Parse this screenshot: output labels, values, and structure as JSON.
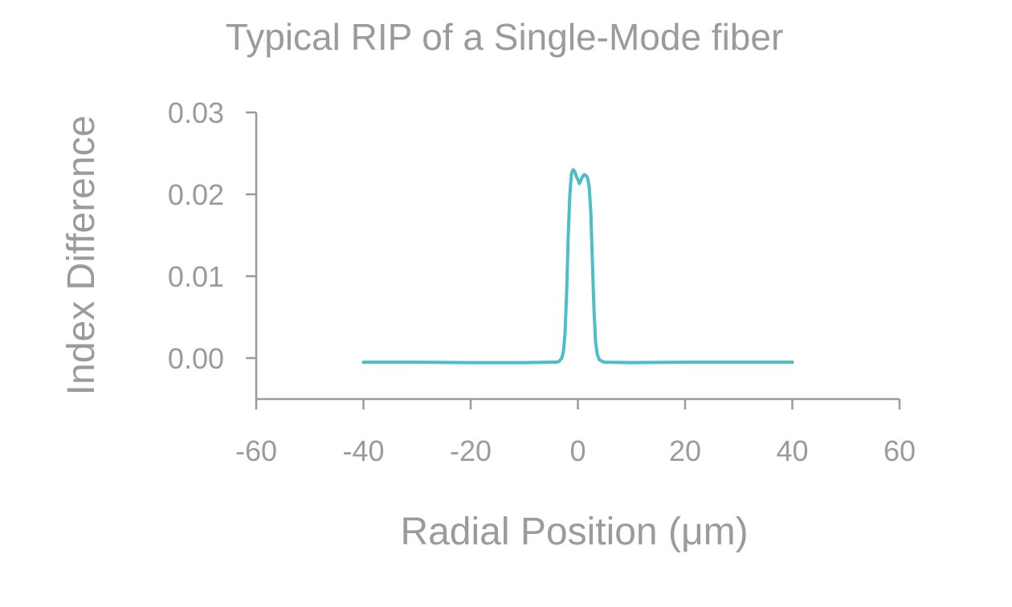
{
  "chart_data": {
    "type": "line",
    "title": "Typical RIP of a Single-Mode fiber",
    "xlabel": "Radial Position (μm)",
    "ylabel": "Index Difference",
    "xlim": [
      -60,
      60
    ],
    "ylim": [
      -0.005,
      0.03
    ],
    "x_ticks": [
      -60,
      -40,
      -20,
      0,
      20,
      40,
      60
    ],
    "x_tick_labels": [
      "-60",
      "-40",
      "-20",
      "0",
      "20",
      "40",
      "60"
    ],
    "y_ticks": [
      0.0,
      0.01,
      0.02,
      0.03
    ],
    "y_tick_labels": [
      "0.00",
      "0.01",
      "0.02",
      "0.03"
    ],
    "grid": false,
    "legend": "none",
    "series_color": "#4dbdc6",
    "axis_color": "#9b9b9b",
    "series": [
      {
        "x": [
          -40,
          -30,
          -20,
          -10,
          -5,
          -4,
          -3.5,
          -3,
          -2.7,
          -2.4,
          -2.1,
          -1.8,
          -1.5,
          -1.2,
          -0.9,
          -0.6,
          -0.3,
          0,
          0.3,
          0.6,
          0.9,
          1.2,
          1.5,
          1.8,
          2.1,
          2.4,
          2.7,
          3.0,
          3.3,
          3.6,
          4.0,
          4.5,
          5,
          10,
          20,
          30,
          40
        ],
        "y": [
          -0.0005,
          -0.0005,
          -0.00055,
          -0.00055,
          -0.0005,
          -0.0005,
          -0.0004,
          0.0,
          0.0008,
          0.003,
          0.008,
          0.015,
          0.02,
          0.0225,
          0.023,
          0.0228,
          0.0222,
          0.0218,
          0.0213,
          0.0218,
          0.0222,
          0.0224,
          0.0223,
          0.022,
          0.021,
          0.018,
          0.012,
          0.006,
          0.002,
          0.0005,
          -0.0002,
          -0.0004,
          -0.0005,
          -0.00055,
          -0.0005,
          -0.0005,
          -0.0005
        ]
      }
    ]
  }
}
